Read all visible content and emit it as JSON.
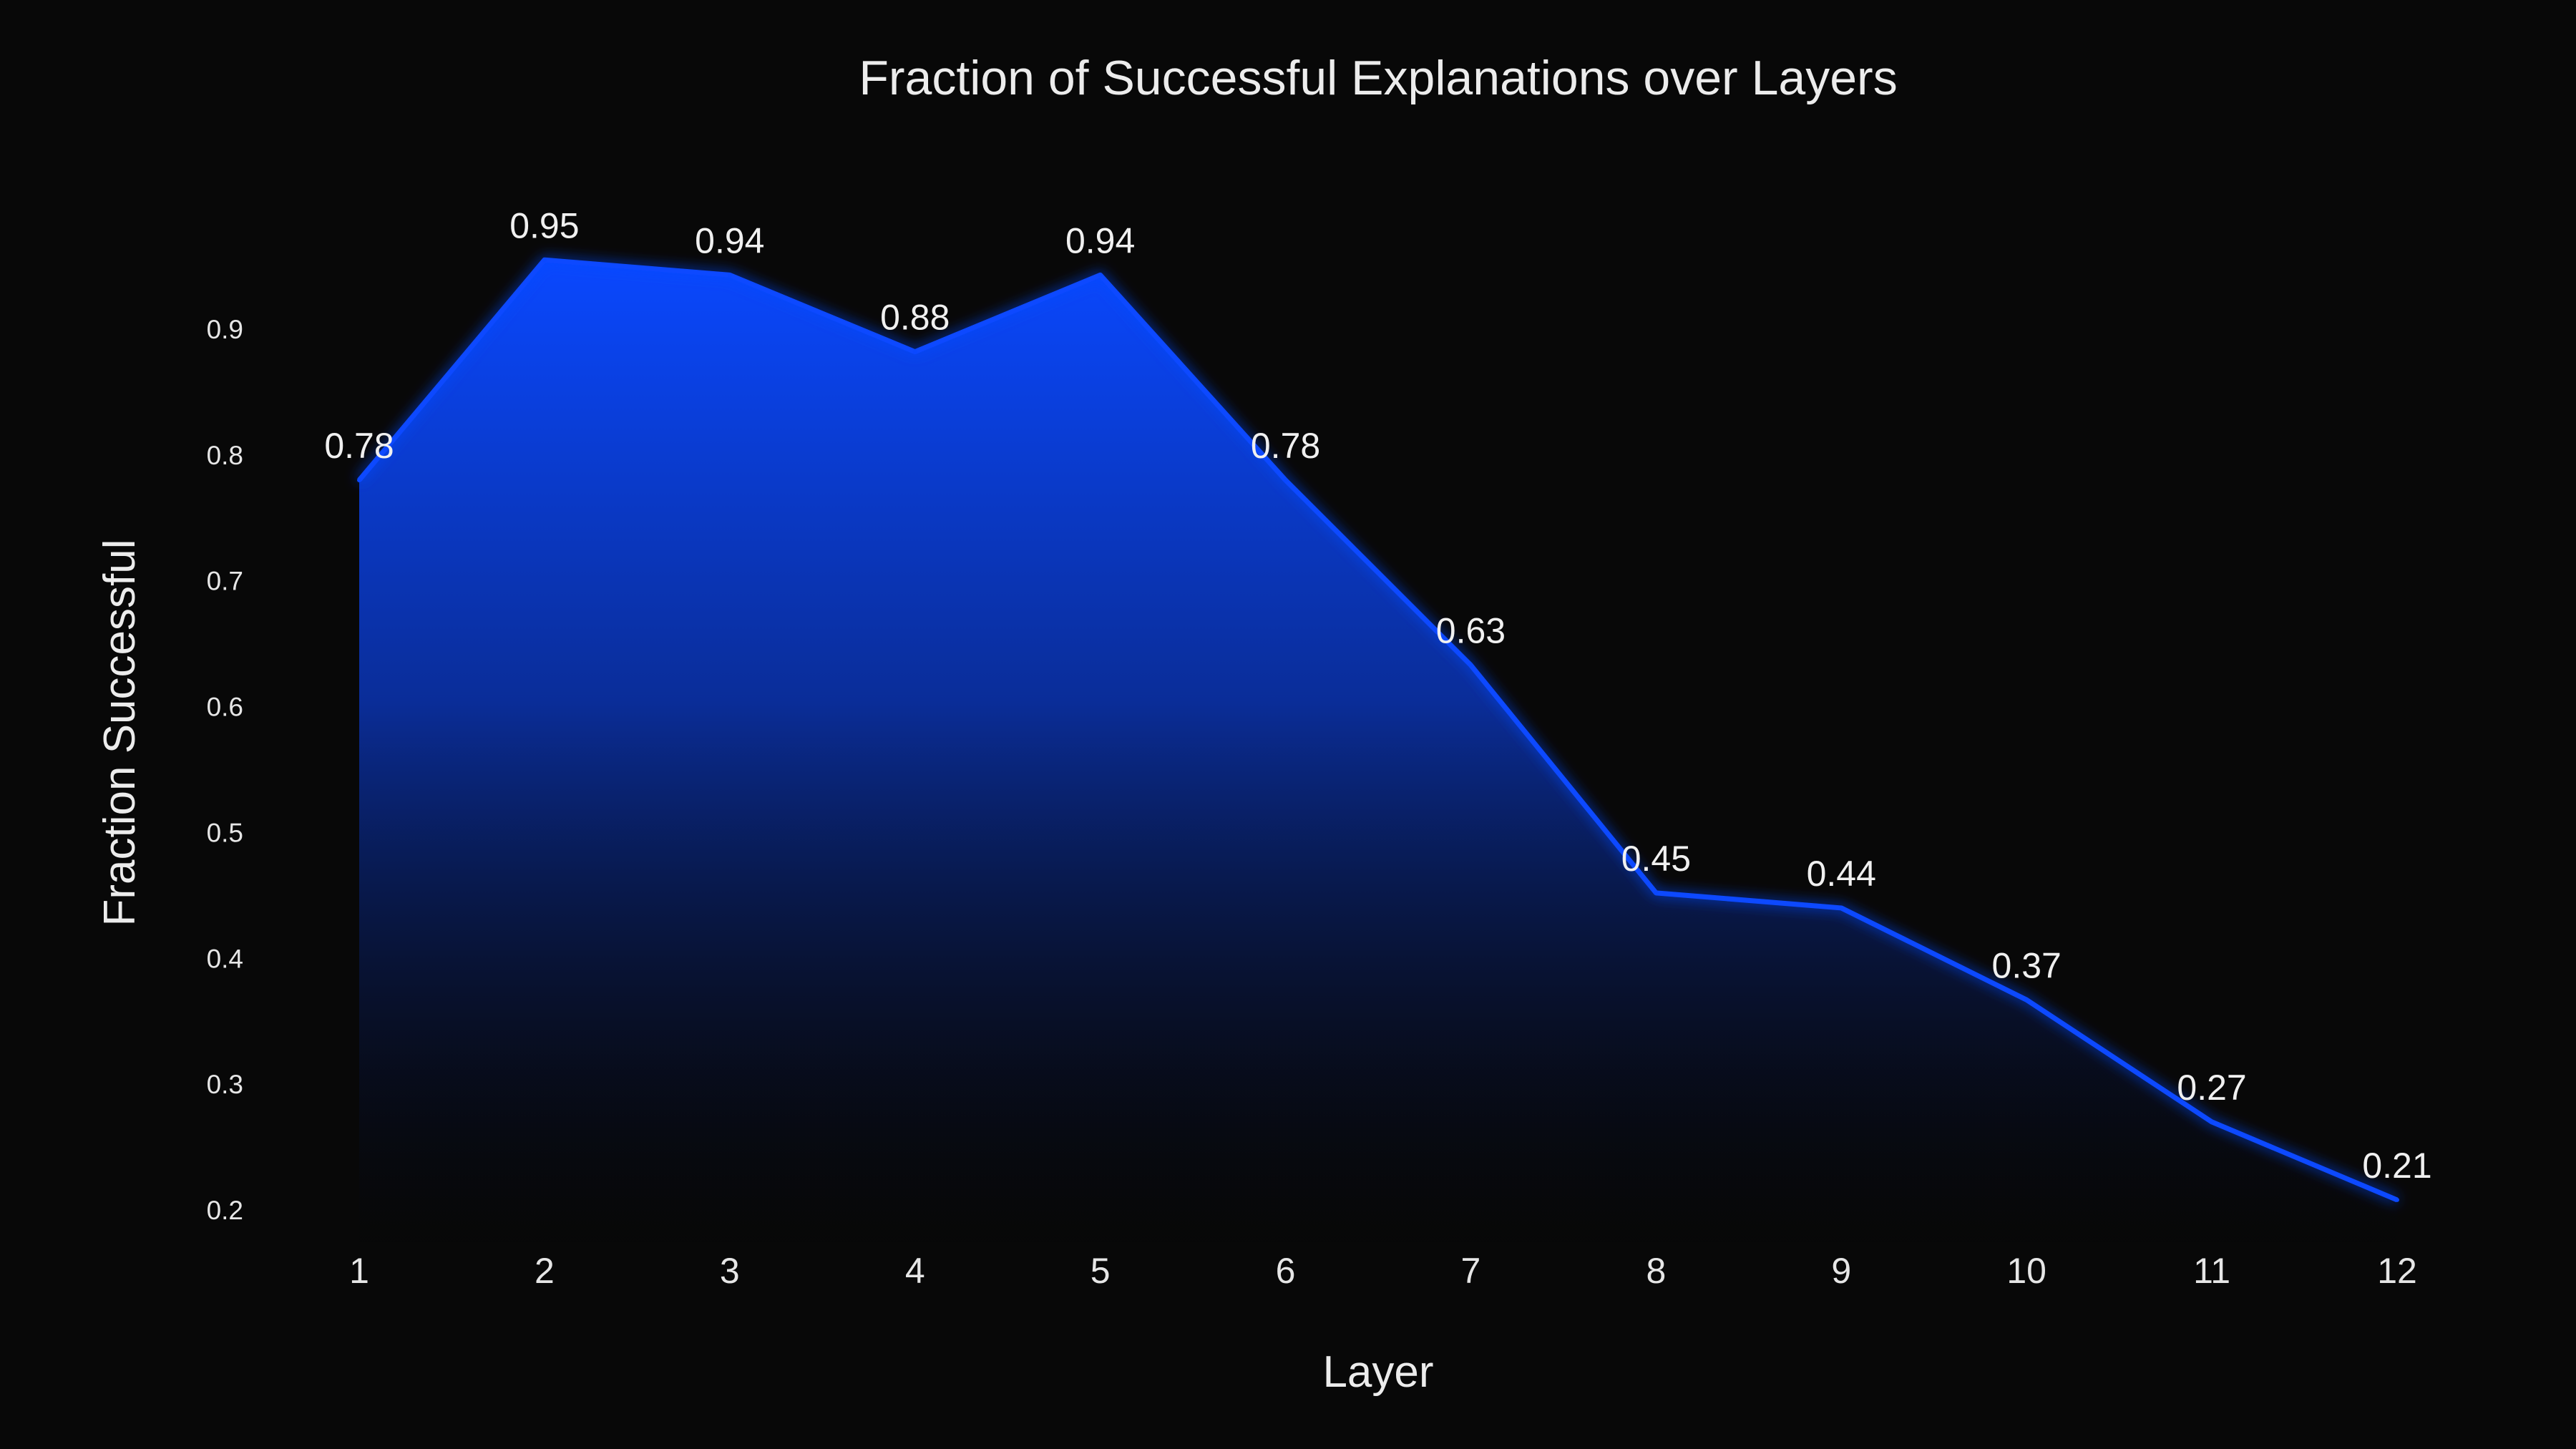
{
  "chart_data": {
    "type": "area",
    "title": "Fraction of Successful Explanations over Layers",
    "xlabel": "Layer",
    "ylabel": "Fraction Successful",
    "categories": [
      "1",
      "2",
      "3",
      "4",
      "5",
      "6",
      "7",
      "8",
      "9",
      "10",
      "11",
      "12"
    ],
    "x": [
      1,
      2,
      3,
      4,
      5,
      6,
      7,
      8,
      9,
      10,
      11,
      12
    ],
    "values": [
      0.78,
      0.955,
      0.943,
      0.882,
      0.943,
      0.78,
      0.633,
      0.452,
      0.44,
      0.367,
      0.27,
      0.208
    ],
    "data_labels": [
      "0.78",
      "0.95",
      "0.94",
      "0.88",
      "0.94",
      "0.78",
      "0.63",
      "0.45",
      "0.44",
      "0.37",
      "0.27",
      "0.21"
    ],
    "yticks": [
      0.2,
      0.3,
      0.4,
      0.5,
      0.6,
      0.7,
      0.8,
      0.9
    ],
    "ytick_labels": [
      "0.2",
      "0.3",
      "0.4",
      "0.5",
      "0.6",
      "0.7",
      "0.8",
      "0.9"
    ],
    "ylim": [
      0.2,
      0.9
    ],
    "grid": false,
    "legend": "none",
    "colors": {
      "background": "#080808",
      "line": "#0a48ff",
      "fill_top": "#0a48ff",
      "fill_bottom": "#050505",
      "text": "#ececec"
    }
  }
}
